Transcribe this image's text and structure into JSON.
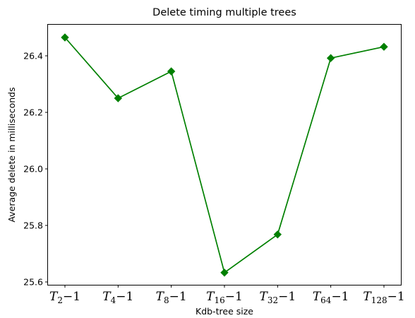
{
  "chart_data": {
    "type": "line",
    "title": "Delete timing multiple trees",
    "xlabel": "Kdb-tree size",
    "ylabel": "Average delete in milliseconds",
    "categories": [
      {
        "base": "T",
        "sub": "2",
        "suffix": "−1"
      },
      {
        "base": "T",
        "sub": "4",
        "suffix": "−1"
      },
      {
        "base": "T",
        "sub": "8",
        "suffix": "−1"
      },
      {
        "base": "T",
        "sub": "16",
        "suffix": "−1"
      },
      {
        "base": "T",
        "sub": "32",
        "suffix": "−1"
      },
      {
        "base": "T",
        "sub": "64",
        "suffix": "−1"
      },
      {
        "base": "T",
        "sub": "128",
        "suffix": "−1"
      }
    ],
    "series": [
      {
        "values": [
          26.465,
          26.25,
          26.345,
          25.633,
          25.768,
          26.392,
          26.432
        ],
        "color": "#008000",
        "marker": "diamond"
      }
    ],
    "ylim": [
      25.59,
      26.51
    ],
    "yticks": [
      25.6,
      25.8,
      26.0,
      26.2,
      26.4
    ],
    "ytick_labels": [
      "25.6",
      "25.8",
      "26.0",
      "26.2",
      "26.4"
    ],
    "grid": false,
    "legend": "none"
  }
}
